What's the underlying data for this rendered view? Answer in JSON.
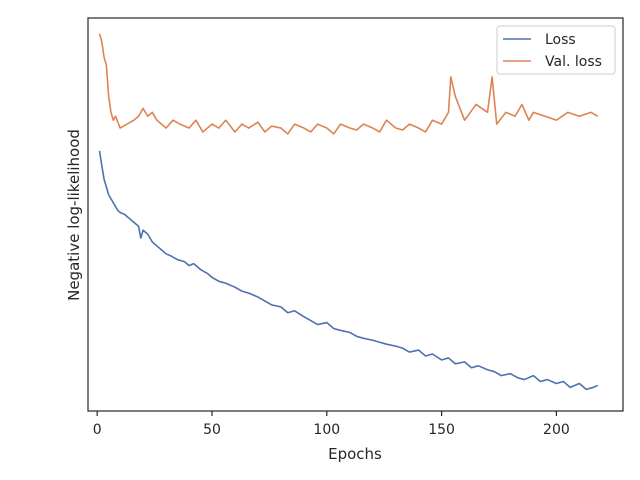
{
  "chart_data": {
    "type": "line",
    "title": "",
    "xlabel": "Epochs",
    "ylabel": "Negative log-likelihood",
    "xlim": [
      -4,
      229
    ],
    "ylim": [
      0,
      1
    ],
    "x_ticks": [
      0,
      50,
      100,
      150,
      200
    ],
    "y_ticks_visible": false,
    "grid": false,
    "legend_position": "top-right",
    "series": [
      {
        "name": "Loss",
        "color": "#4c72b0",
        "x": [
          1,
          2,
          3,
          4,
          5,
          6,
          7,
          8,
          9,
          10,
          12,
          14,
          16,
          18,
          19,
          20,
          22,
          24,
          26,
          28,
          30,
          32,
          35,
          38,
          40,
          42,
          45,
          48,
          50,
          53,
          56,
          60,
          63,
          66,
          70,
          73,
          76,
          80,
          83,
          86,
          90,
          93,
          96,
          100,
          103,
          106,
          110,
          113,
          116,
          120,
          123,
          126,
          130,
          133,
          136,
          140,
          143,
          146,
          150,
          153,
          156,
          160,
          163,
          166,
          170,
          173,
          176,
          180,
          183,
          186,
          190,
          193,
          196,
          200,
          203,
          206,
          210,
          213,
          216,
          218
        ],
        "y": [
          0.662,
          0.625,
          0.59,
          0.57,
          0.55,
          0.54,
          0.53,
          0.52,
          0.51,
          0.505,
          0.5,
          0.49,
          0.48,
          0.47,
          0.44,
          0.46,
          0.45,
          0.43,
          0.42,
          0.41,
          0.4,
          0.395,
          0.385,
          0.38,
          0.37,
          0.375,
          0.36,
          0.35,
          0.34,
          0.33,
          0.325,
          0.315,
          0.305,
          0.3,
          0.29,
          0.28,
          0.27,
          0.265,
          0.25,
          0.255,
          0.24,
          0.23,
          0.22,
          0.225,
          0.21,
          0.205,
          0.2,
          0.19,
          0.185,
          0.18,
          0.175,
          0.17,
          0.165,
          0.16,
          0.15,
          0.155,
          0.14,
          0.145,
          0.13,
          0.135,
          0.12,
          0.125,
          0.11,
          0.115,
          0.105,
          0.1,
          0.09,
          0.095,
          0.085,
          0.08,
          0.09,
          0.075,
          0.08,
          0.07,
          0.075,
          0.06,
          0.07,
          0.055,
          0.06,
          0.065
        ]
      },
      {
        "name": "Val. loss",
        "color": "#dd8452",
        "x": [
          1,
          2,
          3,
          4,
          5,
          6,
          7,
          8,
          10,
          13,
          16,
          18,
          20,
          22,
          24,
          26,
          28,
          30,
          33,
          36,
          40,
          43,
          46,
          50,
          53,
          56,
          60,
          63,
          66,
          70,
          73,
          76,
          80,
          83,
          86,
          90,
          93,
          96,
          100,
          103,
          106,
          110,
          113,
          116,
          120,
          123,
          126,
          130,
          133,
          136,
          140,
          143,
          146,
          150,
          153,
          154,
          156,
          160,
          165,
          170,
          172,
          174,
          178,
          182,
          185,
          188,
          190,
          195,
          200,
          205,
          210,
          215,
          218
        ],
        "y": [
          0.96,
          0.94,
          0.9,
          0.88,
          0.8,
          0.76,
          0.74,
          0.75,
          0.72,
          0.73,
          0.74,
          0.75,
          0.77,
          0.75,
          0.76,
          0.74,
          0.73,
          0.72,
          0.74,
          0.73,
          0.72,
          0.74,
          0.71,
          0.73,
          0.72,
          0.74,
          0.71,
          0.73,
          0.72,
          0.735,
          0.71,
          0.725,
          0.72,
          0.705,
          0.73,
          0.72,
          0.71,
          0.73,
          0.72,
          0.705,
          0.73,
          0.72,
          0.715,
          0.73,
          0.72,
          0.71,
          0.74,
          0.72,
          0.715,
          0.73,
          0.72,
          0.71,
          0.74,
          0.73,
          0.76,
          0.85,
          0.8,
          0.74,
          0.78,
          0.76,
          0.85,
          0.73,
          0.76,
          0.75,
          0.78,
          0.74,
          0.76,
          0.75,
          0.74,
          0.76,
          0.75,
          0.76,
          0.75
        ]
      }
    ]
  }
}
